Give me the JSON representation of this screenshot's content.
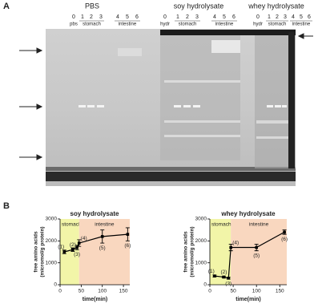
{
  "panel_labels": [
    "A",
    "B"
  ],
  "gel": {
    "groups": [
      {
        "title": "PBS",
        "lanes": [
          "0",
          "1",
          "2",
          "3",
          "4",
          "5",
          "6"
        ],
        "sub": [
          "pbs",
          "stomach",
          "intestine"
        ]
      },
      {
        "title": "soy hydrolysate",
        "lanes": [
          "0",
          "1",
          "2",
          "3",
          "4",
          "5",
          "6"
        ],
        "sub": [
          "hydr",
          "stomach",
          "intestine"
        ]
      },
      {
        "title": "whey hydrolysate",
        "lanes": [
          "0",
          "1",
          "2",
          "3",
          "4",
          "5",
          "6"
        ],
        "sub": [
          "hydr",
          "stomach",
          "intestine"
        ]
      }
    ]
  },
  "chart_data": [
    {
      "type": "line",
      "title": "soy hydrolysate",
      "xlabel": "time(min)",
      "ylabel": [
        "free amino acids",
        "(micromol/g protein)"
      ],
      "x": [
        10,
        30,
        40,
        45,
        100,
        160
      ],
      "series": [
        {
          "color": "#000000",
          "values": [
            1500,
            1600,
            1700,
            1900,
            2200,
            2300
          ],
          "errors": [
            80,
            80,
            100,
            150,
            300,
            300
          ]
        }
      ],
      "point_labels": [
        "(1)",
        "(2)",
        "(3)",
        "(4)",
        "(5)",
        "(6)"
      ],
      "regions": [
        {
          "label": "stomach",
          "start": 0,
          "end": 45,
          "color": "#f2f5a8"
        },
        {
          "label": "intestine",
          "start": 45,
          "end": 165,
          "color": "#f9d7bf"
        }
      ],
      "xlim": [
        0,
        165
      ],
      "xticks": [
        0,
        50,
        100,
        150
      ],
      "ylim": [
        0,
        3000
      ],
      "yticks": [
        0,
        1000,
        2000,
        3000
      ]
    },
    {
      "type": "line",
      "title": "whey hydrolysate",
      "xlabel": "time(min)",
      "ylabel": [
        "free amino acids",
        "(micromol/g protein)"
      ],
      "x": [
        10,
        30,
        40,
        45,
        100,
        160
      ],
      "series": [
        {
          "color": "#000000",
          "values": [
            400,
            350,
            300,
            1700,
            1700,
            2400
          ],
          "errors": [
            40,
            40,
            40,
            150,
            150,
            100
          ]
        }
      ],
      "point_labels": [
        "(1)",
        "(2)",
        "(3)",
        "(4)",
        "(5)",
        "(6)"
      ],
      "regions": [
        {
          "label": "stomach",
          "start": 0,
          "end": 45,
          "color": "#f2f5a8"
        },
        {
          "label": "intestine",
          "start": 45,
          "end": 165,
          "color": "#f9d7bf"
        }
      ],
      "xlim": [
        0,
        165
      ],
      "xticks": [
        0,
        50,
        100,
        150
      ],
      "ylim": [
        0,
        3000
      ],
      "yticks": [
        0,
        1000,
        2000,
        3000
      ]
    }
  ]
}
